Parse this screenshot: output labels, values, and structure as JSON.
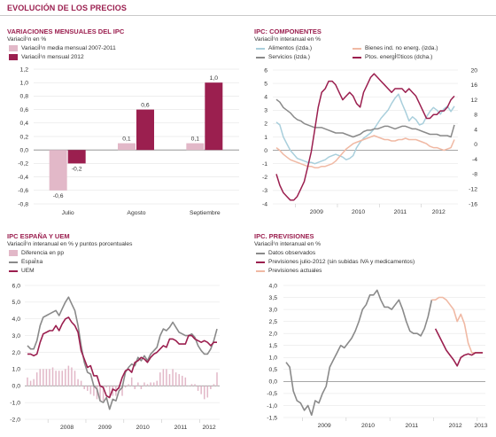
{
  "header": "EVOLUCIÓN DE LOS PRECIOS",
  "panels": {
    "p1": {
      "title": "VARIACIONES MENSUALES DEL IPC",
      "subtitle": "VariaciÌ¹n en %",
      "legend": [
        "VariaciÌ¹n media mensual 2007-2011",
        "VariaciÌ¹n mensual 2012"
      ]
    },
    "p2": {
      "title": "IPC: COMPONENTES",
      "subtitle": "VariaciÌ¹n interanual en %",
      "legend": [
        "Alimentos (izda.)",
        "Servicios (izda.)",
        "Bienes ind. no energ. (izda.)",
        "Ptos. energÌ©ticos (dcha.)"
      ]
    },
    "p3": {
      "title": "IPC ESPAÑA Y UEM",
      "subtitle": "VariaciÌ¹n interanual en % y puntos porcentuales",
      "legend": [
        "Diferencia en pp",
        "EspaÌ±a",
        "UEM"
      ]
    },
    "p4": {
      "title": "IPC. PREVISIONES",
      "subtitle": "VariaciÌ¹n interanual en %",
      "legend": [
        "Datos observados",
        "Previsiones julio-2012 (sin subidas IVA y medicamentos)",
        "Previsiones actuales"
      ]
    }
  },
  "colors": {
    "wine": "#9b1f4f",
    "pink": "#e2b8c8",
    "gray": "#8a8a8a",
    "lightblue": "#a9cfdc",
    "peach": "#f0b9a4",
    "axis": "#c8c8c8"
  },
  "chart_data": [
    {
      "type": "bar",
      "categories": [
        "Julio",
        "Agosto",
        "Septiembre"
      ],
      "series": [
        {
          "name": "VariaciÌ¹n media mensual 2007-2011",
          "values": [
            -0.6,
            0.1,
            0.1
          ],
          "labels": [
            "-0,6",
            "0,1",
            "0,1"
          ]
        },
        {
          "name": "VariaciÌ¹n mensual 2012",
          "values": [
            -0.2,
            0.6,
            1.0
          ],
          "labels": [
            "-0,2",
            "0,6",
            "1,0"
          ]
        }
      ],
      "ylim": [
        -0.8,
        1.2
      ],
      "yticks": [
        "-0,8",
        "-0,6",
        "-0,4",
        "-0,2",
        "0,0",
        "0,2",
        "0,4",
        "0,6",
        "0,8",
        "1,0",
        "1,2"
      ]
    },
    {
      "type": "line",
      "x_start": "2008-07",
      "xtick_labels": [
        "2009",
        "2010",
        "2011",
        "2012"
      ],
      "ylim_left": [
        -4,
        6
      ],
      "ylim_right": [
        -16,
        20
      ],
      "yticks_left": [
        "-4",
        "-3",
        "-2",
        "-1",
        "0",
        "1",
        "2",
        "3",
        "4",
        "5",
        "6"
      ],
      "yticks_right": [
        "-16",
        "-12",
        "-8",
        "-4",
        "0",
        "4",
        "8",
        "12",
        "16",
        "20"
      ],
      "series": [
        {
          "name": "Alimentos (izda.)",
          "axis": "left",
          "values": [
            2.1,
            1.9,
            1.0,
            0.5,
            0.0,
            -0.3,
            -0.6,
            -0.7,
            -0.8,
            -0.9,
            -0.9,
            -1.0,
            -0.9,
            -0.8,
            -0.7,
            -0.5,
            -0.4,
            -0.3,
            -0.4,
            -0.5,
            -0.7,
            -0.6,
            -0.4,
            0.2,
            0.6,
            0.9,
            1.1,
            1.3,
            1.6,
            2.0,
            2.4,
            2.7,
            3.0,
            3.5,
            3.9,
            4.2,
            3.5,
            2.9,
            2.2,
            2.5,
            2.3,
            1.9,
            2.0,
            2.5,
            2.9,
            3.2,
            3.0,
            2.7,
            3.1,
            3.3,
            2.9,
            3.3
          ]
        },
        {
          "name": "Servicios (izda.)",
          "axis": "left",
          "values": [
            3.8,
            3.6,
            3.2,
            3.0,
            2.8,
            2.5,
            2.3,
            2.2,
            2.0,
            1.9,
            1.8,
            1.7,
            1.7,
            1.7,
            1.6,
            1.5,
            1.4,
            1.3,
            1.3,
            1.3,
            1.2,
            1.1,
            1.0,
            1.1,
            1.2,
            1.4,
            1.5,
            1.5,
            1.6,
            1.6,
            1.7,
            1.8,
            1.8,
            1.7,
            1.6,
            1.7,
            1.8,
            1.8,
            1.7,
            1.6,
            1.6,
            1.5,
            1.4,
            1.3,
            1.2,
            1.2,
            1.2,
            1.1,
            1.1,
            1.1,
            1.0,
            1.9
          ]
        },
        {
          "name": "Bienes ind. no energ. (izda.)",
          "axis": "left",
          "values": [
            0.2,
            0.0,
            -0.3,
            -0.5,
            -0.7,
            -0.8,
            -0.9,
            -1.0,
            -1.1,
            -1.2,
            -1.2,
            -1.3,
            -1.3,
            -1.2,
            -1.2,
            -1.1,
            -1.0,
            -0.8,
            -0.5,
            -0.2,
            0.1,
            0.3,
            0.5,
            0.6,
            0.7,
            0.8,
            0.9,
            1.0,
            1.1,
            1.0,
            0.9,
            0.8,
            0.8,
            0.7,
            0.7,
            0.8,
            0.8,
            0.9,
            0.8,
            0.8,
            0.8,
            0.7,
            0.6,
            0.5,
            0.3,
            0.2,
            0.2,
            0.1,
            0.0,
            0.1,
            0.2,
            0.8
          ]
        },
        {
          "name": "Ptos. energÌ©ticos (dcha.)",
          "axis": "right",
          "values": [
            -8,
            -11,
            -13,
            -14,
            -15,
            -15,
            -14,
            -12,
            -10,
            -6,
            -2,
            4,
            10,
            14,
            15,
            17,
            17,
            16,
            14,
            12,
            13,
            14,
            13,
            11,
            10,
            14,
            16,
            18,
            19,
            18,
            17,
            16,
            15,
            14,
            15,
            15,
            15,
            14,
            15,
            14,
            13,
            11,
            9,
            7,
            7,
            8,
            8,
            9,
            9,
            10,
            12,
            13
          ]
        }
      ]
    },
    {
      "type": "line",
      "x_start": "2007-06",
      "xtick_labels": [
        "2008",
        "2009",
        "2010",
        "2011",
        "2012"
      ],
      "ylim": [
        -2,
        6
      ],
      "yticks": [
        "-2,0",
        "-1,0",
        "0,0",
        "1,0",
        "2,0",
        "3,0",
        "4,0",
        "5,0",
        "6,0"
      ],
      "series": [
        {
          "name": "EspaÌ±a",
          "values": [
            2.4,
            2.2,
            2.2,
            2.7,
            3.6,
            4.1,
            4.2,
            4.3,
            4.4,
            4.5,
            4.2,
            4.6,
            5.0,
            5.3,
            4.9,
            4.5,
            3.6,
            2.4,
            1.4,
            0.8,
            0.7,
            0.0,
            -0.2,
            -0.9,
            -1.0,
            -0.7,
            -1.4,
            -0.8,
            -0.9,
            -0.3,
            -0.1,
            0.8,
            1.1,
            1.3,
            1.2,
            1.7,
            1.5,
            1.8,
            1.5,
            1.9,
            2.1,
            2.3,
            3.0,
            3.4,
            3.3,
            3.5,
            3.8,
            3.5,
            3.2,
            3.1,
            3.0,
            3.0,
            3.1,
            2.9,
            2.4,
            2.1,
            1.9,
            1.9,
            2.2,
            2.7,
            3.4
          ]
        },
        {
          "name": "UEM",
          "values": [
            1.9,
            1.9,
            1.8,
            1.9,
            2.6,
            3.1,
            3.2,
            3.3,
            3.3,
            3.6,
            3.3,
            3.7,
            4.0,
            4.1,
            3.8,
            3.6,
            3.2,
            2.1,
            1.6,
            1.1,
            1.2,
            0.6,
            0.6,
            0.0,
            -0.1,
            -0.6,
            -0.7,
            -0.2,
            -0.3,
            -0.1,
            0.5,
            0.9,
            1.0,
            0.8,
            1.4,
            1.5,
            1.7,
            1.6,
            1.4,
            1.7,
            1.9,
            2.0,
            2.2,
            2.4,
            2.3,
            2.8,
            2.8,
            2.7,
            2.5,
            2.5,
            2.5,
            3.0,
            3.0,
            2.8,
            2.7,
            2.6,
            2.7,
            2.6,
            2.4,
            2.6,
            2.6
          ]
        },
        {
          "name": "Diferencia en pp",
          "type": "bar",
          "values": [
            0.5,
            0.3,
            0.4,
            0.8,
            1.0,
            1.0,
            1.0,
            1.0,
            1.1,
            0.9,
            0.9,
            0.9,
            1.0,
            1.2,
            1.1,
            0.9,
            0.4,
            0.3,
            -0.2,
            -0.3,
            -0.5,
            -0.6,
            -0.8,
            -0.9,
            -0.9,
            -0.1,
            -0.7,
            -0.6,
            -0.6,
            -0.2,
            -0.6,
            -0.1,
            0.1,
            0.5,
            -0.2,
            0.2,
            -0.2,
            0.2,
            0.1,
            0.2,
            0.2,
            0.3,
            0.8,
            1.0,
            1.0,
            0.7,
            1.0,
            0.8,
            0.7,
            0.6,
            0.5,
            0.0,
            0.1,
            0.1,
            -0.3,
            -0.5,
            -0.8,
            -0.7,
            -0.2,
            0.1,
            0.8
          ]
        }
      ]
    },
    {
      "type": "line",
      "x_start": "2008-08",
      "xtick_labels": [
        "2009",
        "2010",
        "2011",
        "2012",
        "2013"
      ],
      "ylim": [
        -1.5,
        4.0
      ],
      "yticks": [
        "-1,5",
        "-1,0",
        "-0,5",
        "0,0",
        "0,5",
        "1,0",
        "1,5",
        "2,0",
        "2,5",
        "3,0",
        "3,5",
        "4,0"
      ],
      "series": [
        {
          "name": "Datos observados",
          "values": [
            0.8,
            0.6,
            -0.4,
            -0.8,
            -0.9,
            -1.2,
            -1.0,
            -1.4,
            -0.8,
            -0.9,
            -0.5,
            -0.2,
            0.6,
            0.9,
            1.2,
            1.5,
            1.4,
            1.6,
            1.8,
            2.1,
            2.5,
            3.0,
            3.2,
            3.6,
            3.6,
            3.8,
            3.4,
            3.1,
            3.1,
            3.0,
            3.2,
            3.4,
            3.0,
            2.5,
            2.1,
            2.0,
            2.0,
            1.9,
            2.2,
            2.7,
            3.4
          ]
        },
        {
          "name": "Previsiones julio-2012 (sin subidas IVA y medicamentos)",
          "x_offset": 41,
          "values": [
            2.2,
            1.9,
            1.6,
            1.3,
            1.1,
            0.9,
            0.65,
            1.0,
            1.1,
            1.15,
            1.1,
            1.2,
            1.2,
            1.2
          ]
        },
        {
          "name": "Previsiones actuales",
          "x_offset": 41,
          "values": [
            3.4,
            3.5,
            3.5,
            3.4,
            3.2,
            3.0,
            2.5,
            2.8,
            2.4,
            1.6,
            1.2,
            1.2,
            1.2,
            1.2
          ]
        }
      ]
    }
  ]
}
